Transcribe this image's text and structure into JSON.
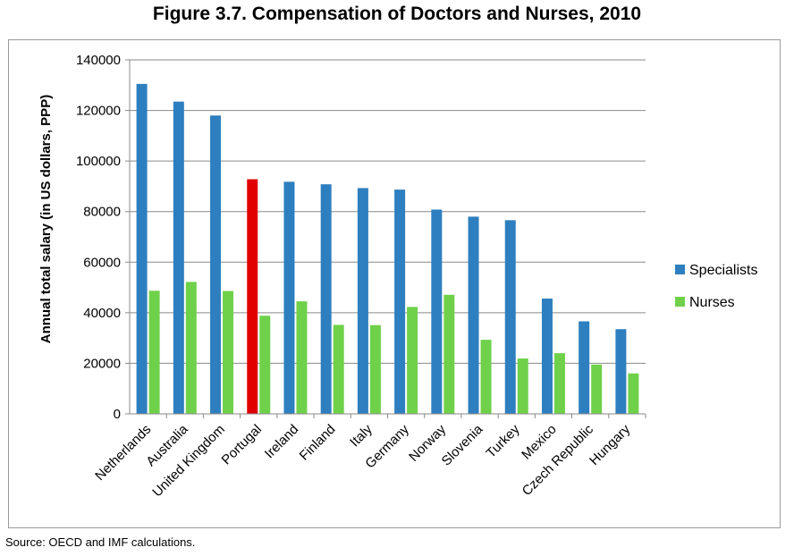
{
  "title": "Figure 3.7. Compensation of Doctors and Nurses, 2010",
  "source": "Source: OECD and IMF calculations.",
  "chart_data": {
    "type": "bar",
    "categories": [
      "Netherlands",
      "Australia",
      "United Kingdom",
      "Portugal",
      "Ireland",
      "Finland",
      "Italy",
      "Germany",
      "Norway",
      "Slovenia",
      "Turkey",
      "Mexico",
      "Czech Republic",
      "Hungary"
    ],
    "series": [
      {
        "name": "Specialists",
        "color": "#2e7fbf",
        "values": [
          130500,
          123500,
          118000,
          92800,
          91800,
          90800,
          89300,
          88700,
          80800,
          78000,
          76600,
          45600,
          36600,
          33500
        ]
      },
      {
        "name": "Nurses",
        "color": "#6fd14a",
        "values": [
          48700,
          52200,
          48600,
          38800,
          44500,
          35200,
          35100,
          42300,
          47100,
          29300,
          21900,
          24000,
          19500,
          16000
        ]
      }
    ],
    "highlight": {
      "category": "Portugal",
      "series": "Specialists",
      "color": "#e00000"
    },
    "ylabel": "Annual total salary (in US dollars, PPP)",
    "xlabel": "",
    "ylim": [
      0,
      140000
    ],
    "yticks": [
      "0",
      "20000",
      "40000",
      "60000",
      "80000",
      "100000",
      "120000",
      "140000"
    ],
    "grid": true,
    "legend": "right"
  }
}
